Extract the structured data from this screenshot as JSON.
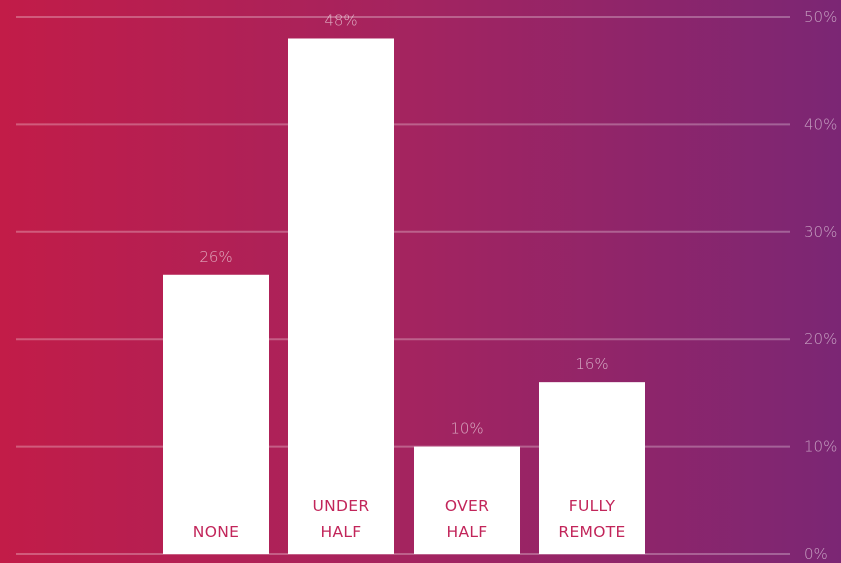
{
  "chart_data": {
    "type": "bar",
    "categories": [
      [
        "NONE"
      ],
      [
        "UNDER",
        "HALF"
      ],
      [
        "OVER",
        "HALF"
      ],
      [
        "FULLY",
        "REMOTE"
      ]
    ],
    "values": [
      26,
      48,
      10,
      16
    ],
    "value_labels": [
      "26%",
      "48%",
      "10%",
      "16%"
    ],
    "y_ticks": [
      0,
      10,
      20,
      30,
      40,
      50
    ],
    "y_tick_labels": [
      "0%",
      "10%",
      "20%",
      "30%",
      "40%",
      "50%"
    ],
    "ylim": [
      0,
      50
    ],
    "axis_position": "right",
    "grid": true,
    "title": "",
    "xlabel": "",
    "ylabel": "",
    "colors": {
      "background_start": "#c21c48",
      "background_end": "#7b2674",
      "bar": "#ffffff",
      "category_label": "#c2255a"
    }
  }
}
